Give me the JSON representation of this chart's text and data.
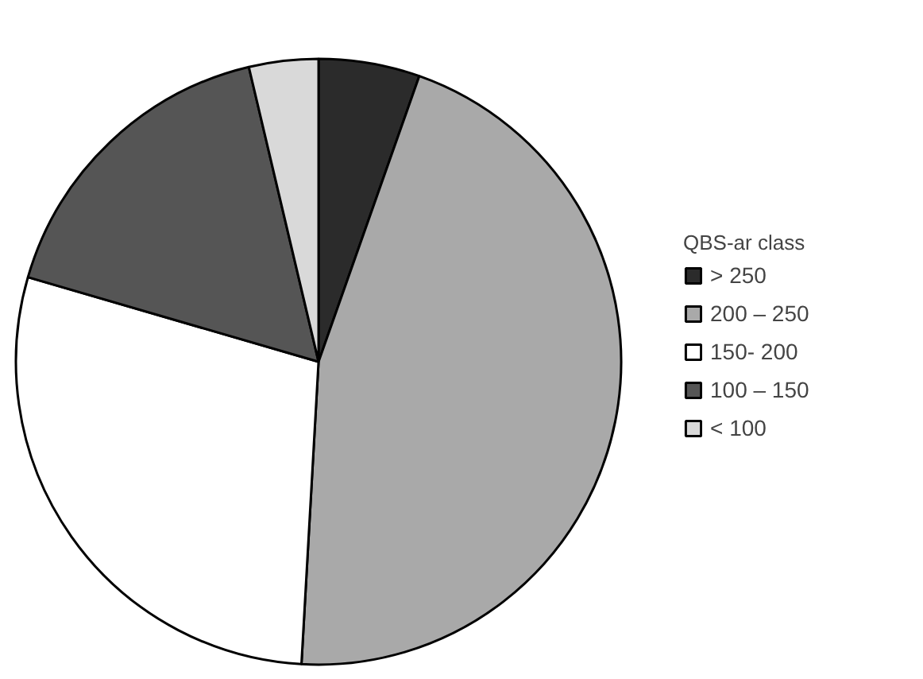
{
  "chart_data": {
    "type": "pie",
    "legend_title": "QBS-ar class",
    "legend": "right",
    "categories": [
      "> 250",
      "200 – 250",
      "150- 200",
      "100 – 150",
      "< 100"
    ],
    "values": [
      5.4,
      45.5,
      28.6,
      16.8,
      3.7
    ],
    "colors": [
      "#2b2b2b",
      "#a9a9a9",
      "#ffffff",
      "#555555",
      "#d9d9d9"
    ]
  }
}
